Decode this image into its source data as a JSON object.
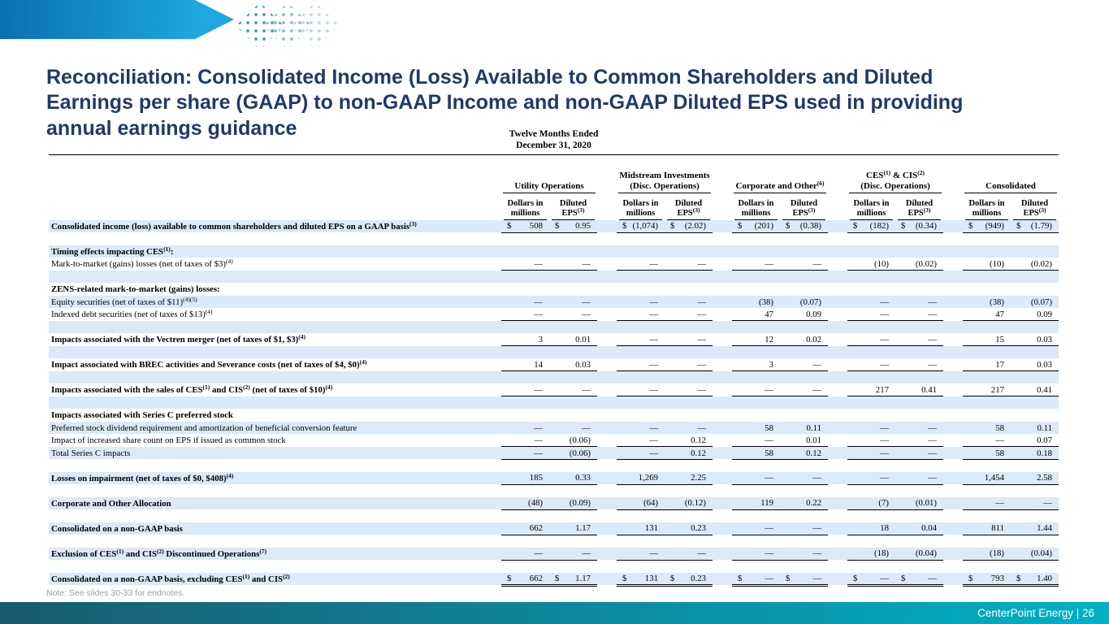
{
  "slide": {
    "title_lines": [
      "Reconciliation: Consolidated Income (Loss) Available to Common Shareholders and Diluted",
      "Earnings per share (GAAP) to non-GAAP Income and non-GAAP Diluted EPS used in providing",
      "annual earnings guidance"
    ],
    "note": "Note: See slides 30-33 for endnotes.",
    "footer": "CenterPoint Energy | 26"
  },
  "colors": {
    "title_navy": "#1f3a68",
    "row_stripe_blue": "#dce9f6",
    "footer_teal_start": "#1a5a6e",
    "footer_teal_end": "#00b1c5",
    "arrow_blue": "#1ea7e0"
  },
  "table": {
    "period": [
      "Twelve Months Ended",
      "December 31, 2020"
    ],
    "groups": [
      {
        "title": "Utility Operations",
        "subtitle": ""
      },
      {
        "title": "Midstream Investments",
        "subtitle": "(Disc. Operations)"
      },
      {
        "title": "Corporate and Other(6)",
        "subtitle": ""
      },
      {
        "title": "CES(1) & CIS(2)",
        "subtitle": "(Disc. Operations)"
      },
      {
        "title": "Consolidated",
        "subtitle": ""
      }
    ],
    "subcols": [
      "Dollars in millions",
      "Diluted EPS(3)"
    ],
    "rows": [
      {
        "label": "Consolidated income (loss) available to common shareholders and diluted EPS on a GAAP basis(3)",
        "bold": true,
        "ul": "single",
        "values": [
          "$508",
          "$0.95",
          "$(1,074)",
          "$(2.02)",
          "$(201)",
          "$(0.38)",
          "$(182)",
          "$(0.34)",
          "$(949)",
          "$(1.79)"
        ]
      },
      {
        "label": "",
        "values": []
      },
      {
        "label": "Timing effects impacting CES(1):",
        "bold": true,
        "values": []
      },
      {
        "label": "Mark-to-market (gains) losses (net of taxes of $3)(4)",
        "ul": "single",
        "values": [
          "—",
          "—",
          "—",
          "—",
          "—",
          "—",
          "(10)",
          "(0.02)",
          "(10)",
          "(0.02)"
        ]
      },
      {
        "label": "",
        "values": []
      },
      {
        "label": "ZENS-related mark-to-market (gains) losses:",
        "bold": true,
        "values": []
      },
      {
        "label": "Equity securities (net of taxes of $11)(4)(5)",
        "values": [
          "—",
          "—",
          "—",
          "—",
          "(38)",
          "(0.07)",
          "—",
          "—",
          "(38)",
          "(0.07)"
        ]
      },
      {
        "label": "Indexed debt securities (net of taxes of $13)(4)",
        "ul": "single",
        "values": [
          "—",
          "—",
          "—",
          "—",
          "47",
          "0.09",
          "—",
          "—",
          "47",
          "0.09"
        ]
      },
      {
        "label": "",
        "values": []
      },
      {
        "label": "Impacts associated with the Vectren merger (net of taxes of $1, $3)(4)",
        "bold": true,
        "ul": "single",
        "values": [
          "3",
          "0.01",
          "—",
          "—",
          "12",
          "0.02",
          "—",
          "—",
          "15",
          "0.03"
        ]
      },
      {
        "label": "",
        "values": []
      },
      {
        "label": "Impact associated with BREC activities and Severance costs (net of taxes of $4, $0)(4)",
        "bold": true,
        "ul": "single",
        "values": [
          "14",
          "0.03",
          "—",
          "—",
          "3",
          "—",
          "—",
          "—",
          "17",
          "0.03"
        ]
      },
      {
        "label": "",
        "values": []
      },
      {
        "label": "Impacts associated with the sales of CES(1) and CIS(2) (net of taxes of $10)(4)",
        "bold": true,
        "ul": "single",
        "values": [
          "—",
          "—",
          "—",
          "—",
          "—",
          "—",
          "217",
          "0.41",
          "217",
          "0.41"
        ]
      },
      {
        "label": "",
        "values": []
      },
      {
        "label": "Impacts associated with Series C preferred stock",
        "bold": true,
        "values": []
      },
      {
        "label": "Preferred stock dividend requirement and amortization of beneficial conversion feature",
        "values": [
          "—",
          "—",
          "—",
          "—",
          "58",
          "0.11",
          "—",
          "—",
          "58",
          "0.11"
        ]
      },
      {
        "label": "Impact of increased share count on EPS if issued as common stock",
        "ul": "single",
        "values": [
          "—",
          "(0.06)",
          "—",
          "0.12",
          "—",
          "0.01",
          "—",
          "—",
          "—",
          "0.07"
        ]
      },
      {
        "label": "Total Series C impacts",
        "ul": "single",
        "values": [
          "—",
          "(0.06)",
          "—",
          "0.12",
          "58",
          "0.12",
          "—",
          "—",
          "58",
          "0.18"
        ]
      },
      {
        "label": "",
        "values": []
      },
      {
        "label": "Losses on impairment (net of taxes of $0, $408)(4)",
        "bold": true,
        "ul": "single",
        "values": [
          "185",
          "0.33",
          "1,269",
          "2.25",
          "—",
          "—",
          "—",
          "—",
          "1,454",
          "2.58"
        ]
      },
      {
        "label": "",
        "values": []
      },
      {
        "label": "Corporate and Other Allocation",
        "bold": true,
        "ul": "single",
        "values": [
          "(48)",
          "(0.09)",
          "(64)",
          "(0.12)",
          "119",
          "0.22",
          "(7)",
          "(0.01)",
          "—",
          "—"
        ]
      },
      {
        "label": "",
        "values": []
      },
      {
        "label": "Consolidated on a non-GAAP basis",
        "bold": true,
        "ul": "single",
        "values": [
          "662",
          "1.17",
          "131",
          "0.23",
          "—",
          "—",
          "18",
          "0.04",
          "811",
          "1.44"
        ]
      },
      {
        "label": "",
        "values": []
      },
      {
        "label": "Exclusion of CES(1) and CIS(2) Discontinued Operations(7)",
        "bold": true,
        "ul": "single",
        "values": [
          "—",
          "—",
          "—",
          "—",
          "—",
          "—",
          "(18)",
          "(0.04)",
          "(18)",
          "(0.04)"
        ]
      },
      {
        "label": "",
        "values": []
      },
      {
        "label": "Consolidated on a non-GAAP basis, excluding CES(1) and CIS(2)",
        "bold": true,
        "ul": "double",
        "values": [
          "$662",
          "$1.17",
          "$131",
          "$0.23",
          "$—",
          "$—",
          "$—",
          "$—",
          "$793",
          "$1.40"
        ]
      }
    ]
  }
}
